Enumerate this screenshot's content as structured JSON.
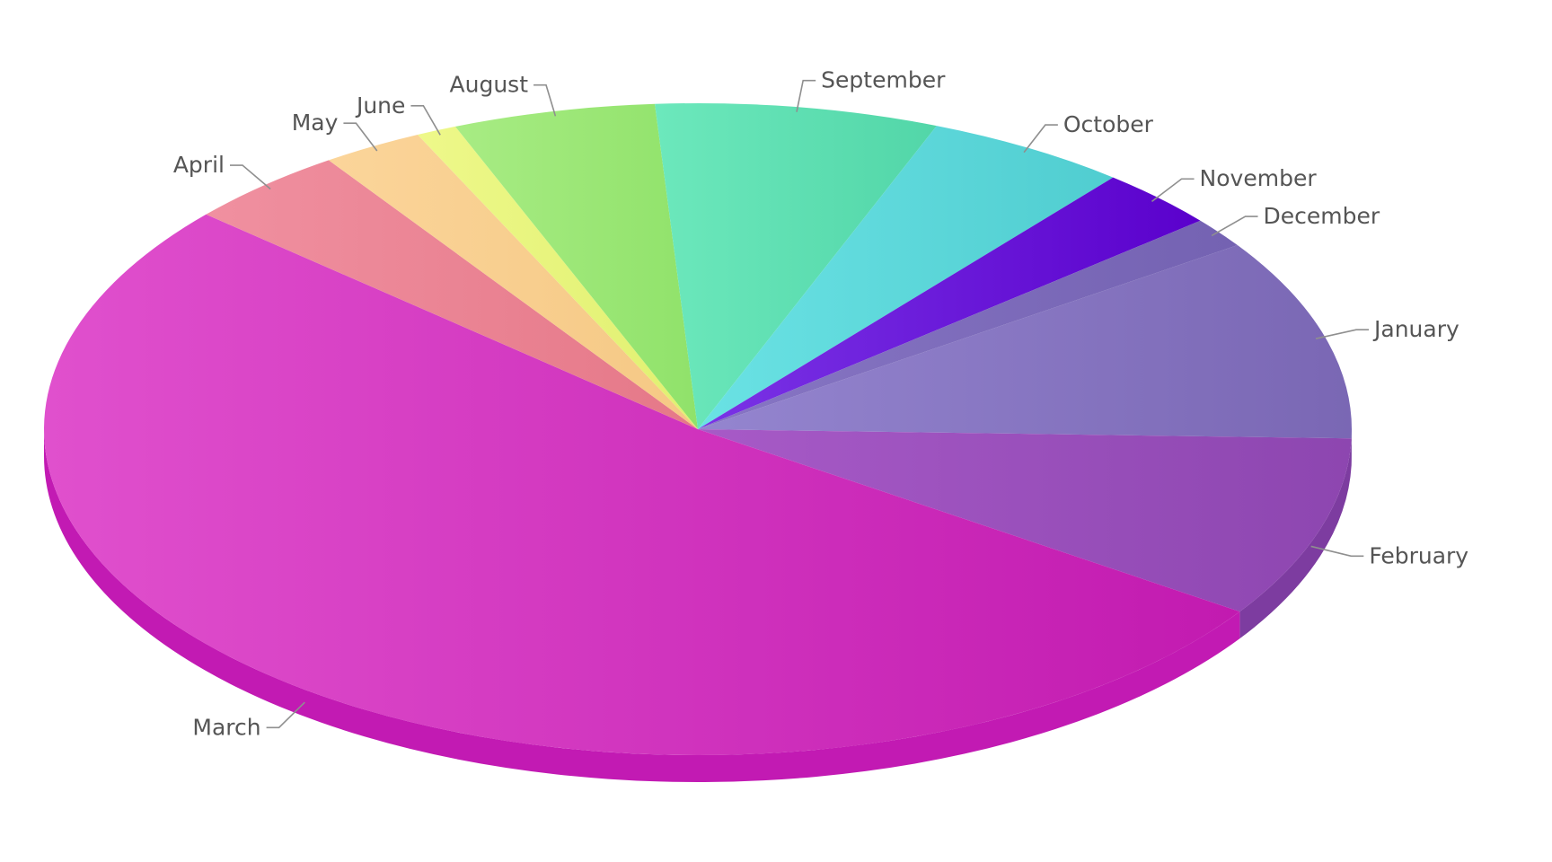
{
  "chart_data": {
    "type": "pie",
    "style": "3d",
    "legend": "none",
    "series": [
      {
        "categories": [
          "January",
          "February",
          "March",
          "April",
          "May",
          "June",
          "August",
          "September",
          "October",
          "November",
          "December"
        ],
        "values": [
          10,
          9,
          52,
          4,
          2.5,
          1,
          5,
          7,
          5,
          3,
          1.5
        ],
        "colors": {
          "January": {
            "top": [
              "#9485cf",
              "#7a67b4"
            ],
            "side": "#6f5ca6"
          },
          "February": {
            "top": [
              "#a75ac7",
              "#8d46b0"
            ],
            "side": "#7d3ca0"
          },
          "March": {
            "top": [
              "#e050cd",
              "#c21ab0"
            ],
            "side": "#c21ab3"
          },
          "April": {
            "top": [
              "#f090a0",
              "#e57888"
            ],
            "side": "#ee8a97"
          },
          "May": {
            "top": [
              "#fbd59a",
              "#f5c884"
            ],
            "side": "#fcd38f"
          },
          "June": {
            "top": [
              "#eef88a",
              "#e0f070"
            ],
            "side": "#e4f57a"
          },
          "August": {
            "top": [
              "#a8ec84",
              "#90e26a"
            ],
            "side": "#95e873"
          },
          "September": {
            "top": [
              "#6ce8bc",
              "#52d6a8"
            ],
            "side": "#55d6a5"
          },
          "October": {
            "top": [
              "#6ae2e4",
              "#50cdd0"
            ],
            "side": "#4ec7ca"
          },
          "November": {
            "top": [
              "#7a34e6",
              "#5a00cc"
            ],
            "side": "#5100b6"
          },
          "December": {
            "top": [
              "#8776c4",
              "#7462b2"
            ],
            "side": "#6e5aa8"
          }
        }
      }
    ]
  }
}
